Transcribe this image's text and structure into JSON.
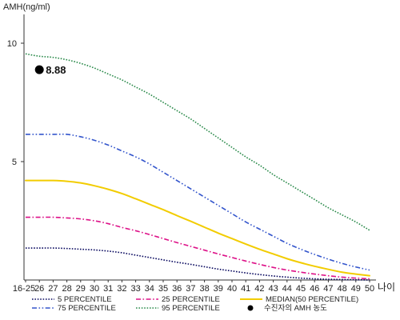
{
  "chart_data": {
    "type": "line",
    "ylabel": "AMH(ng/ml)",
    "xlabel": "나이",
    "categories": [
      "16-25",
      "26",
      "27",
      "28",
      "29",
      "30",
      "31",
      "32",
      "33",
      "34",
      "35",
      "36",
      "37",
      "38",
      "39",
      "40",
      "41",
      "42",
      "43",
      "44",
      "45",
      "46",
      "47",
      "48",
      "49",
      "50"
    ],
    "ylim": [
      0,
      11
    ],
    "yticks": [
      5,
      10
    ],
    "grid": false,
    "legend_position": "bottom",
    "series": [
      {
        "name": "5 PERCENTILE",
        "color": "#0a0a60",
        "dash": "dotted",
        "values": [
          1.35,
          1.35,
          1.35,
          1.33,
          1.3,
          1.27,
          1.22,
          1.15,
          1.05,
          0.95,
          0.85,
          0.75,
          0.66,
          0.56,
          0.46,
          0.38,
          0.3,
          0.23,
          0.17,
          0.12,
          0.08,
          0.05,
          0.03,
          0.02,
          0.01,
          0.0
        ]
      },
      {
        "name": "75 PERCENTILE",
        "color": "#3355cc",
        "dash": "dashdotdot",
        "values": [
          6.15,
          6.15,
          6.15,
          6.15,
          6.05,
          5.9,
          5.7,
          5.45,
          5.2,
          4.9,
          4.55,
          4.2,
          3.85,
          3.5,
          3.15,
          2.8,
          2.45,
          2.15,
          1.85,
          1.55,
          1.3,
          1.08,
          0.88,
          0.7,
          0.55,
          0.42
        ]
      },
      {
        "name": "25 PERCENTILE",
        "color": "#dd1188",
        "dash": "dashdot",
        "values": [
          2.65,
          2.65,
          2.65,
          2.62,
          2.58,
          2.5,
          2.38,
          2.22,
          2.08,
          1.92,
          1.75,
          1.58,
          1.42,
          1.26,
          1.1,
          0.95,
          0.8,
          0.66,
          0.53,
          0.42,
          0.33,
          0.25,
          0.18,
          0.12,
          0.08,
          0.05
        ]
      },
      {
        "name": "95 PERCENTILE",
        "color": "#2a8a4a",
        "dash": "dotted",
        "values": [
          9.55,
          9.45,
          9.4,
          9.3,
          9.15,
          8.95,
          8.7,
          8.45,
          8.15,
          7.85,
          7.5,
          7.15,
          6.8,
          6.4,
          6.0,
          5.6,
          5.2,
          4.85,
          4.45,
          4.1,
          3.75,
          3.4,
          3.05,
          2.75,
          2.45,
          2.1
        ]
      },
      {
        "name": "MEDIAN(50 PERCENTILE)",
        "color": "#f2cc00",
        "dash": "solid",
        "values": [
          4.2,
          4.2,
          4.2,
          4.17,
          4.1,
          3.98,
          3.83,
          3.65,
          3.43,
          3.2,
          2.97,
          2.72,
          2.48,
          2.23,
          1.98,
          1.75,
          1.52,
          1.3,
          1.1,
          0.9,
          0.73,
          0.58,
          0.45,
          0.33,
          0.25,
          0.18
        ]
      }
    ],
    "point": {
      "name": "수진자의 AMH 농도",
      "category": "26",
      "value": 8.88,
      "label": "8.88",
      "color": "#000000"
    }
  }
}
